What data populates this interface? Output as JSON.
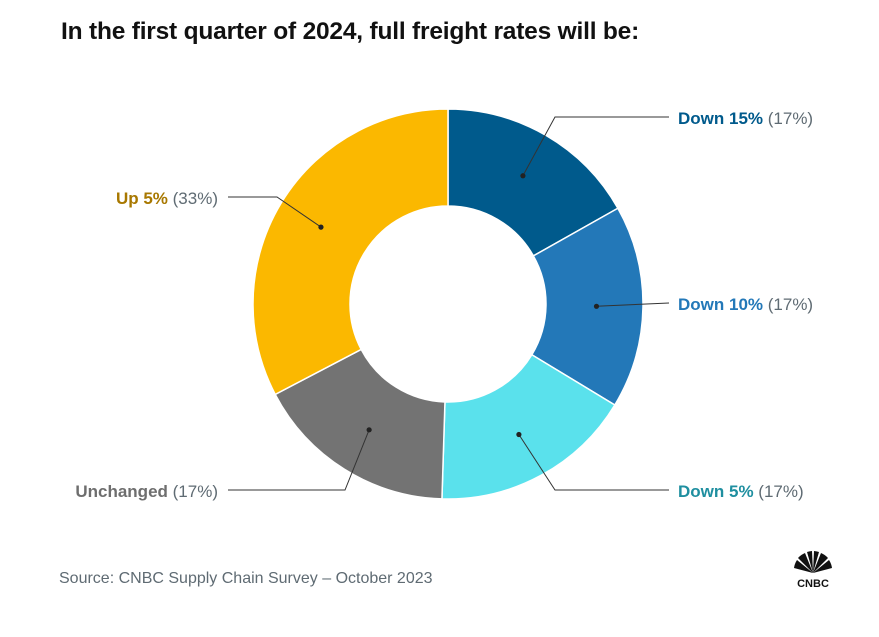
{
  "title": "In the first quarter of 2024, full freight rates will be:",
  "source": "Source: CNBC Supply Chain Survey – October 2023",
  "logo_text": "CNBC",
  "chart_data": {
    "type": "pie",
    "variant": "donut",
    "title": "In the first quarter of 2024, full freight rates will be:",
    "slices": [
      {
        "label": "Down 15%",
        "pct_text": "(17%)",
        "value": 17,
        "color": "#005a8c",
        "label_color": "#005a8c"
      },
      {
        "label": "Down 10%",
        "pct_text": "(17%)",
        "value": 17,
        "color": "#2378b8",
        "label_color": "#2378b8"
      },
      {
        "label": "Down 5%",
        "pct_text": "(17%)",
        "value": 17,
        "color": "#5ae1ec",
        "label_color": "#1f8fa0"
      },
      {
        "label": "Unchanged",
        "pct_text": "(17%)",
        "value": 17,
        "color": "#737373",
        "label_color": "#6e6e6e"
      },
      {
        "label": "Up 5%",
        "pct_text": "(33%)",
        "value": 33,
        "color": "#fbb800",
        "label_color": "#a87800"
      }
    ],
    "pct_color": "#5f6b73"
  }
}
